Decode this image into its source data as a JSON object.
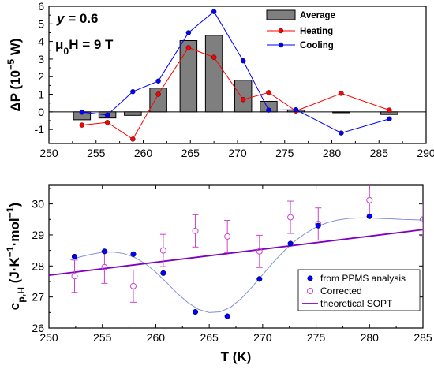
{
  "chart_data": [
    {
      "type": "bar",
      "ylabel": "ΔP (10⁻⁵ W)",
      "xlim": [
        250,
        290
      ],
      "ylim": [
        -1.8,
        6
      ],
      "xticks": [
        "250",
        "255",
        "260",
        "265",
        "270",
        "275",
        "280",
        "285",
        "290"
      ],
      "yticks": [
        "-1",
        "0",
        "1",
        "2",
        "3",
        "4",
        "5",
        "6"
      ],
      "annotation_line1": "y = 0.6",
      "annotation_line2": "μ₀H = 9 T",
      "legend": [
        "Average",
        "Heating",
        "Cooling"
      ],
      "colors": {
        "bars": "#7f7f7f",
        "heating": "#ff0000",
        "cooling": "#0000ff"
      },
      "legend_position": "top-right",
      "bars": {
        "name": "Average",
        "x": [
          253.5,
          256.2,
          258.9,
          261.6,
          264.8,
          267.5,
          270.6,
          273.3,
          276.2,
          281.0,
          286.1
        ],
        "values": [
          -0.45,
          -0.35,
          -0.2,
          1.35,
          4.05,
          4.35,
          1.8,
          0.6,
          0.1,
          -0.05,
          -0.15
        ]
      },
      "series": [
        {
          "name": "Heating",
          "x": [
            253.5,
            256.2,
            258.9,
            261.6,
            264.8,
            267.5,
            270.6,
            273.3,
            276.2,
            281.0,
            286.1
          ],
          "y": [
            -0.75,
            -0.6,
            -1.55,
            1.0,
            3.65,
            3.1,
            0.7,
            1.1,
            0.05,
            1.05,
            0.1
          ]
        },
        {
          "name": "Cooling",
          "x": [
            253.5,
            256.2,
            258.9,
            261.6,
            264.8,
            267.5,
            270.6,
            273.3,
            276.2,
            281.0,
            286.1
          ],
          "y": [
            -0.02,
            -0.18,
            1.15,
            1.75,
            4.5,
            5.7,
            2.9,
            0.1,
            0.12,
            -1.2,
            -0.4
          ]
        }
      ]
    },
    {
      "type": "scatter",
      "xlabel": "T (K)",
      "ylabel": "cp,H (J·K⁻¹·mol⁻¹)",
      "xlim": [
        250,
        285
      ],
      "ylim": [
        26,
        30.6
      ],
      "xticks": [
        "250",
        "255",
        "260",
        "265",
        "270",
        "275",
        "280",
        "285"
      ],
      "yticks": [
        "26",
        "27",
        "28",
        "29",
        "30"
      ],
      "legend": [
        "from PPMS analysis",
        "Corrected",
        "theoretical SOPT"
      ],
      "colors": {
        "ppms": "#0000ff",
        "corrected": "#cc44cc",
        "sopt": "#8000c0",
        "fit": "#8090d8"
      },
      "legend_position": "bottom-right",
      "series": [
        {
          "name": "from PPMS analysis",
          "x": [
            252.4,
            255.2,
            257.9,
            260.7,
            263.7,
            266.7,
            269.7,
            272.6,
            275.2,
            280.0
          ],
          "y": [
            28.3,
            28.47,
            28.38,
            27.77,
            26.52,
            26.38,
            27.58,
            28.72,
            29.3,
            29.6
          ]
        },
        {
          "name": "Corrected",
          "x": [
            252.4,
            255.2,
            257.9,
            260.7,
            263.7,
            266.7,
            269.7,
            272.6,
            275.2,
            280.0,
            285.0
          ],
          "y": [
            27.67,
            27.96,
            27.35,
            28.5,
            29.13,
            28.95,
            28.47,
            29.57,
            29.35,
            30.12,
            29.5
          ],
          "yerr": [
            0.52,
            0.52,
            0.52,
            0.52,
            0.52,
            0.52,
            0.52,
            0.52,
            0.52,
            0.52,
            0.52
          ]
        },
        {
          "name": "theoretical SOPT",
          "x": [
            250,
            285
          ],
          "y": [
            27.7,
            29.17
          ]
        }
      ],
      "fit_curve": {
        "x": [
          252,
          253,
          254,
          255,
          256,
          257,
          258,
          259,
          260,
          261,
          262,
          263,
          264,
          265,
          266,
          267,
          268,
          269,
          270,
          271,
          272,
          273,
          274,
          275,
          276,
          277,
          278,
          279,
          280,
          281,
          282,
          283,
          284,
          285
        ],
        "y": [
          28.2,
          28.3,
          28.38,
          28.44,
          28.45,
          28.4,
          28.28,
          28.08,
          27.8,
          27.47,
          27.12,
          26.82,
          26.6,
          26.5,
          26.52,
          26.67,
          26.95,
          27.32,
          27.72,
          28.12,
          28.48,
          28.8,
          29.05,
          29.25,
          29.39,
          29.48,
          29.53,
          29.55,
          29.55,
          29.53,
          29.52,
          29.5,
          29.49,
          29.48
        ]
      }
    }
  ]
}
